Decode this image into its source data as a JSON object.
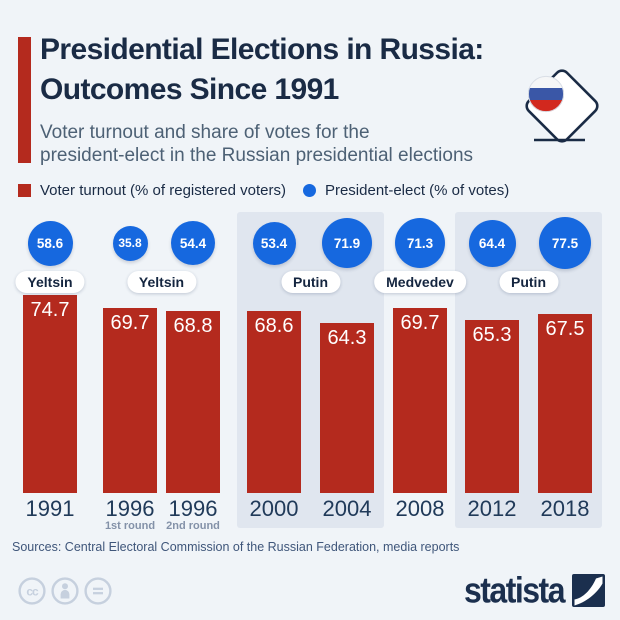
{
  "header": {
    "title_line1": "Presidential Elections in Russia:",
    "title_line2": "Outcomes Since 1991",
    "subtitle_line1": "Voter turnout and share of votes for the",
    "subtitle_line2": "president-elect in the Russian presidential elections"
  },
  "legend": {
    "turnout": "Voter turnout (% of registered voters)",
    "president_elect": "President-elect (% of votes)"
  },
  "chart_data": {
    "type": "bar",
    "title": "Presidential Elections in Russia: Outcomes Since 1991",
    "categories": [
      "1991",
      "1996",
      "1996",
      "2000",
      "2004",
      "2008",
      "2012",
      "2018"
    ],
    "round_labels": [
      "",
      "1st round",
      "2nd round",
      "",
      "",
      "",
      "",
      ""
    ],
    "series": [
      {
        "name": "Voter turnout (% of registered voters)",
        "values": [
          74.7,
          69.7,
          68.8,
          68.6,
          64.3,
          69.7,
          65.3,
          67.5
        ],
        "color": "#b42a1e"
      },
      {
        "name": "President-elect (% of votes)",
        "values": [
          58.6,
          35.8,
          54.4,
          53.4,
          71.9,
          71.3,
          64.4,
          77.5
        ],
        "color": "#1668df"
      }
    ],
    "winners": [
      {
        "label": "Yeltsin",
        "columns": [
          0
        ]
      },
      {
        "label": "Yeltsin",
        "columns": [
          1,
          2
        ]
      },
      {
        "label": "Putin",
        "columns": [
          3,
          4
        ]
      },
      {
        "label": "Medvedev",
        "columns": [
          5
        ]
      },
      {
        "label": "Putin",
        "columns": [
          6,
          7
        ]
      }
    ],
    "highlight_groups": [
      [
        3,
        4
      ],
      [
        6,
        7
      ]
    ],
    "ylim": [
      0,
      100
    ],
    "grid": false,
    "legend_position": "top"
  },
  "footer": {
    "sources": "Sources: Central Electoral Commission of the Russian Federation, media reports",
    "brand": "statista",
    "license_icons": [
      "cc-icon",
      "attribution-icon",
      "no-derivatives-icon"
    ]
  },
  "colors": {
    "turnout_red": "#b42a1e",
    "elect_blue": "#1668df",
    "navy": "#1a2b45",
    "band": "#e0e6ef",
    "background": "#f0f4f8"
  }
}
